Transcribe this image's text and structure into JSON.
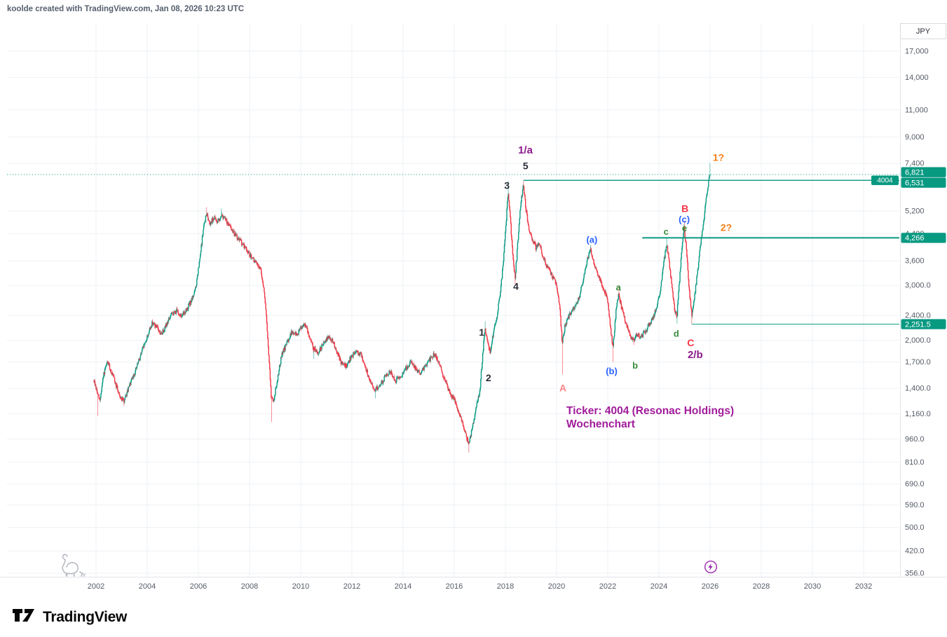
{
  "meta": {
    "attribution": "koolde created with TradingView.com, Jan 08, 2026 10:23 UTC",
    "currency_label": "JPY",
    "brand": "TradingView"
  },
  "annotation_text": {
    "line1": "Ticker: 4004 (Resonac Holdings)",
    "line2": "Wochenchart",
    "color": "#a11c9b"
  },
  "chart_data": {
    "type": "candlestick",
    "symbol": "4004",
    "company": "Resonac Holdings",
    "timeframe": "Wochenchart (weekly)",
    "currency": "JPY",
    "scale": "log",
    "colors": {
      "up": "#089981",
      "down": "#f23645",
      "level": "#089981",
      "badge": "#089981",
      "grid": "#eef1f6",
      "axis_text": "#555b66",
      "wave": {
        "purple": "#8b1a89",
        "black": "#2a2e39",
        "red": "#f23645",
        "lightred": "#f7868a",
        "blue": "#2962ff",
        "green": "#388e3c",
        "orange": "#f57f17"
      }
    },
    "x_axis": {
      "ticks": [
        2002,
        2004,
        2006,
        2008,
        2010,
        2012,
        2014,
        2016,
        2018,
        2020,
        2022,
        2024,
        2026,
        2028,
        2030,
        2032
      ]
    },
    "y_axis": {
      "scale": "log",
      "ticks": [
        {
          "p": 17000,
          "label": "17,000"
        },
        {
          "p": 14000,
          "label": "14,000"
        },
        {
          "p": 11000,
          "label": "11,000"
        },
        {
          "p": 9000,
          "label": "9,000"
        },
        {
          "p": 7400,
          "label": "7,400"
        },
        {
          "p": 5200,
          "label": "5,200"
        },
        {
          "p": 4400,
          "label": "4,400"
        },
        {
          "p": 3600,
          "label": "3,600"
        },
        {
          "p": 3000,
          "label": "3,000.0"
        },
        {
          "p": 2400,
          "label": "2,400.0"
        },
        {
          "p": 2000,
          "label": "2,000.0"
        },
        {
          "p": 1700,
          "label": "1,700.0"
        },
        {
          "p": 1400,
          "label": "1,400.0"
        },
        {
          "p": 1160,
          "label": "1,160.0"
        },
        {
          "p": 960,
          "label": "960.0"
        },
        {
          "p": 810,
          "label": "810.0"
        },
        {
          "p": 690,
          "label": "690.0"
        },
        {
          "p": 590,
          "label": "590.0"
        },
        {
          "p": 500,
          "label": "500.0"
        },
        {
          "p": 420,
          "label": "420.0"
        },
        {
          "p": 356,
          "label": "356.0"
        }
      ]
    },
    "price_line": {
      "price": 6821,
      "label": "6,821"
    },
    "levels": [
      {
        "price": 6531,
        "label": "6,531",
        "tag": "4004",
        "from_t": 2018.71,
        "width": 1.3
      },
      {
        "price": 4266,
        "label": "4,266",
        "from_t": 2023.35,
        "width": 2
      },
      {
        "price": 2251.5,
        "label": "2,251.5",
        "from_t": 2025.29,
        "width": 1
      }
    ],
    "wave_labels": [
      {
        "t": 2018.78,
        "p": 8130,
        "text": "1/a",
        "color": "purple",
        "size": 15
      },
      {
        "t": 2018.79,
        "p": 7230,
        "text": "5",
        "color": "black",
        "size": 14
      },
      {
        "t": 2018.06,
        "p": 6250,
        "text": "3",
        "color": "black",
        "size": 14
      },
      {
        "t": 2018.41,
        "p": 2960,
        "text": "4",
        "color": "black",
        "size": 14
      },
      {
        "t": 2017.07,
        "p": 2110,
        "text": "1",
        "color": "black",
        "size": 14
      },
      {
        "t": 2017.34,
        "p": 1505,
        "text": "2",
        "color": "black",
        "size": 14
      },
      {
        "t": 2020.25,
        "p": 1395,
        "text": "A",
        "color": "lightred",
        "size": 14
      },
      {
        "t": 2021.38,
        "p": 4180,
        "text": "(a)",
        "color": "blue",
        "size": 13
      },
      {
        "t": 2022.15,
        "p": 1580,
        "text": "(b)",
        "color": "blue",
        "size": 13
      },
      {
        "t": 2022.42,
        "p": 2940,
        "text": "a",
        "color": "green",
        "size": 13
      },
      {
        "t": 2023.07,
        "p": 1650,
        "text": "b",
        "color": "green",
        "size": 13
      },
      {
        "t": 2024.28,
        "p": 4440,
        "text": "c",
        "color": "green",
        "size": 13
      },
      {
        "t": 2024.68,
        "p": 2090,
        "text": "d",
        "color": "green",
        "size": 13
      },
      {
        "t": 2025.0,
        "p": 4560,
        "text": "e",
        "color": "green",
        "size": 13
      },
      {
        "t": 2024.99,
        "p": 4870,
        "text": "(c)",
        "color": "blue",
        "size": 13
      },
      {
        "t": 2025.02,
        "p": 5260,
        "text": "B",
        "color": "red",
        "size": 14
      },
      {
        "t": 2025.24,
        "p": 1950,
        "text": "C",
        "color": "red",
        "size": 14
      },
      {
        "t": 2025.42,
        "p": 1790,
        "text": "2/b",
        "color": "purple",
        "size": 15
      },
      {
        "t": 2026.33,
        "p": 7700,
        "text": "1?",
        "color": "orange",
        "size": 14
      },
      {
        "t": 2026.63,
        "p": 4580,
        "text": "2?",
        "color": "orange",
        "size": 14
      }
    ],
    "anchors": [
      [
        2001.92,
        1480
      ],
      [
        2002.05,
        1350
      ],
      [
        2002.15,
        1280
      ],
      [
        2002.3,
        1550
      ],
      [
        2002.45,
        1700
      ],
      [
        2002.6,
        1580
      ],
      [
        2002.8,
        1420
      ],
      [
        2002.95,
        1310
      ],
      [
        2003.1,
        1270
      ],
      [
        2003.3,
        1420
      ],
      [
        2003.55,
        1600
      ],
      [
        2003.8,
        1850
      ],
      [
        2004,
        2050
      ],
      [
        2004.2,
        2280
      ],
      [
        2004.4,
        2180
      ],
      [
        2004.55,
        2080
      ],
      [
        2004.75,
        2250
      ],
      [
        2004.95,
        2420
      ],
      [
        2005.15,
        2480
      ],
      [
        2005.35,
        2380
      ],
      [
        2005.55,
        2520
      ],
      [
        2005.75,
        2700
      ],
      [
        2005.9,
        2950
      ],
      [
        2006.05,
        3600
      ],
      [
        2006.2,
        4600
      ],
      [
        2006.32,
        5100
      ],
      [
        2006.45,
        4750
      ],
      [
        2006.6,
        4950
      ],
      [
        2006.75,
        4800
      ],
      [
        2006.9,
        5050
      ],
      [
        2007.05,
        4900
      ],
      [
        2007.25,
        4600
      ],
      [
        2007.45,
        4350
      ],
      [
        2007.65,
        4150
      ],
      [
        2007.85,
        3950
      ],
      [
        2008.05,
        3700
      ],
      [
        2008.25,
        3550
      ],
      [
        2008.45,
        3350
      ],
      [
        2008.6,
        2750
      ],
      [
        2008.72,
        1950
      ],
      [
        2008.85,
        1300
      ],
      [
        2008.95,
        1280
      ],
      [
        2009.1,
        1520
      ],
      [
        2009.25,
        1780
      ],
      [
        2009.45,
        1950
      ],
      [
        2009.65,
        2120
      ],
      [
        2009.85,
        2080
      ],
      [
        2010.05,
        2220
      ],
      [
        2010.15,
        2280
      ],
      [
        2010.35,
        2050
      ],
      [
        2010.5,
        1880
      ],
      [
        2010.7,
        1830
      ],
      [
        2010.9,
        1960
      ],
      [
        2011.1,
        2060
      ],
      [
        2011.25,
        1980
      ],
      [
        2011.45,
        1800
      ],
      [
        2011.6,
        1680
      ],
      [
        2011.8,
        1650
      ],
      [
        2011.95,
        1760
      ],
      [
        2012.15,
        1830
      ],
      [
        2012.35,
        1800
      ],
      [
        2012.55,
        1620
      ],
      [
        2012.75,
        1450
      ],
      [
        2012.9,
        1380
      ],
      [
        2013.1,
        1430
      ],
      [
        2013.3,
        1520
      ],
      [
        2013.5,
        1590
      ],
      [
        2013.7,
        1480
      ],
      [
        2013.9,
        1520
      ],
      [
        2014.1,
        1620
      ],
      [
        2014.3,
        1690
      ],
      [
        2014.5,
        1610
      ],
      [
        2014.7,
        1560
      ],
      [
        2014.9,
        1660
      ],
      [
        2015.1,
        1760
      ],
      [
        2015.25,
        1810
      ],
      [
        2015.45,
        1640
      ],
      [
        2015.65,
        1480
      ],
      [
        2015.85,
        1340
      ],
      [
        2016.05,
        1260
      ],
      [
        2016.25,
        1130
      ],
      [
        2016.45,
        990
      ],
      [
        2016.58,
        920
      ],
      [
        2016.72,
        1060
      ],
      [
        2016.88,
        1230
      ],
      [
        2017,
        1380
      ],
      [
        2017.1,
        1750
      ],
      [
        2017.2,
        2180
      ],
      [
        2017.3,
        1950
      ],
      [
        2017.4,
        1830
      ],
      [
        2017.55,
        2150
      ],
      [
        2017.7,
        2480
      ],
      [
        2017.82,
        2950
      ],
      [
        2017.92,
        3600
      ],
      [
        2018.02,
        4700
      ],
      [
        2018.1,
        6000
      ],
      [
        2018.18,
        5100
      ],
      [
        2018.28,
        3800
      ],
      [
        2018.38,
        3150
      ],
      [
        2018.5,
        4300
      ],
      [
        2018.6,
        5500
      ],
      [
        2018.7,
        6300
      ],
      [
        2018.8,
        5300
      ],
      [
        2018.92,
        4500
      ],
      [
        2019.05,
        4250
      ],
      [
        2019.2,
        3950
      ],
      [
        2019.32,
        4100
      ],
      [
        2019.45,
        3750
      ],
      [
        2019.6,
        3500
      ],
      [
        2019.75,
        3300
      ],
      [
        2019.9,
        3150
      ],
      [
        2020.02,
        2950
      ],
      [
        2020.12,
        2550
      ],
      [
        2020.22,
        1950
      ],
      [
        2020.32,
        2200
      ],
      [
        2020.45,
        2350
      ],
      [
        2020.6,
        2480
      ],
      [
        2020.75,
        2580
      ],
      [
        2020.9,
        2780
      ],
      [
        2021.05,
        3150
      ],
      [
        2021.2,
        3650
      ],
      [
        2021.32,
        3900
      ],
      [
        2021.45,
        3600
      ],
      [
        2021.6,
        3280
      ],
      [
        2021.75,
        3050
      ],
      [
        2021.9,
        2850
      ],
      [
        2022.02,
        2600
      ],
      [
        2022.12,
        2150
      ],
      [
        2022.2,
        1880
      ],
      [
        2022.32,
        2450
      ],
      [
        2022.42,
        2820
      ],
      [
        2022.55,
        2520
      ],
      [
        2022.7,
        2280
      ],
      [
        2022.85,
        2080
      ],
      [
        2023,
        1990
      ],
      [
        2023.15,
        2090
      ],
      [
        2023.3,
        2040
      ],
      [
        2023.45,
        2130
      ],
      [
        2023.6,
        2230
      ],
      [
        2023.75,
        2330
      ],
      [
        2023.9,
        2520
      ],
      [
        2024.05,
        2880
      ],
      [
        2024.18,
        3500
      ],
      [
        2024.3,
        4100
      ],
      [
        2024.42,
        3450
      ],
      [
        2024.52,
        2900
      ],
      [
        2024.62,
        2500
      ],
      [
        2024.7,
        2380
      ],
      [
        2024.8,
        3100
      ],
      [
        2024.9,
        3950
      ],
      [
        2024.98,
        4600
      ],
      [
        2025.08,
        3900
      ],
      [
        2025.18,
        2950
      ],
      [
        2025.28,
        2400
      ],
      [
        2025.38,
        2700
      ],
      [
        2025.48,
        3150
      ],
      [
        2025.58,
        3750
      ],
      [
        2025.68,
        4400
      ],
      [
        2025.78,
        5100
      ],
      [
        2025.87,
        5900
      ],
      [
        2025.94,
        6500
      ],
      [
        2026,
        6821
      ]
    ],
    "spikes": [
      {
        "t": 2002.07,
        "low": 1140
      },
      {
        "t": 2003.1,
        "low": 1230
      },
      {
        "t": 2006.32,
        "high": 5350
      },
      {
        "t": 2006.9,
        "high": 5300
      },
      {
        "t": 2008.86,
        "low": 1090
      },
      {
        "t": 2010.52,
        "low": 1740
      },
      {
        "t": 2012.92,
        "low": 1300
      },
      {
        "t": 2016.58,
        "low": 870
      },
      {
        "t": 2017.21,
        "high": 2300
      },
      {
        "t": 2018.11,
        "high": 6500
      },
      {
        "t": 2018.39,
        "low": 3020
      },
      {
        "t": 2018.71,
        "high": 6531
      },
      {
        "t": 2020.23,
        "low": 1550
      },
      {
        "t": 2021.33,
        "high": 4050
      },
      {
        "t": 2022.21,
        "low": 1700
      },
      {
        "t": 2022.43,
        "high": 3000
      },
      {
        "t": 2023.01,
        "low": 1930
      },
      {
        "t": 2024.31,
        "high": 4266
      },
      {
        "t": 2024.71,
        "low": 2260
      },
      {
        "t": 2024.99,
        "high": 4850
      },
      {
        "t": 2025.29,
        "low": 2251.5
      },
      {
        "t": 2026.0,
        "high": 7420
      }
    ]
  }
}
